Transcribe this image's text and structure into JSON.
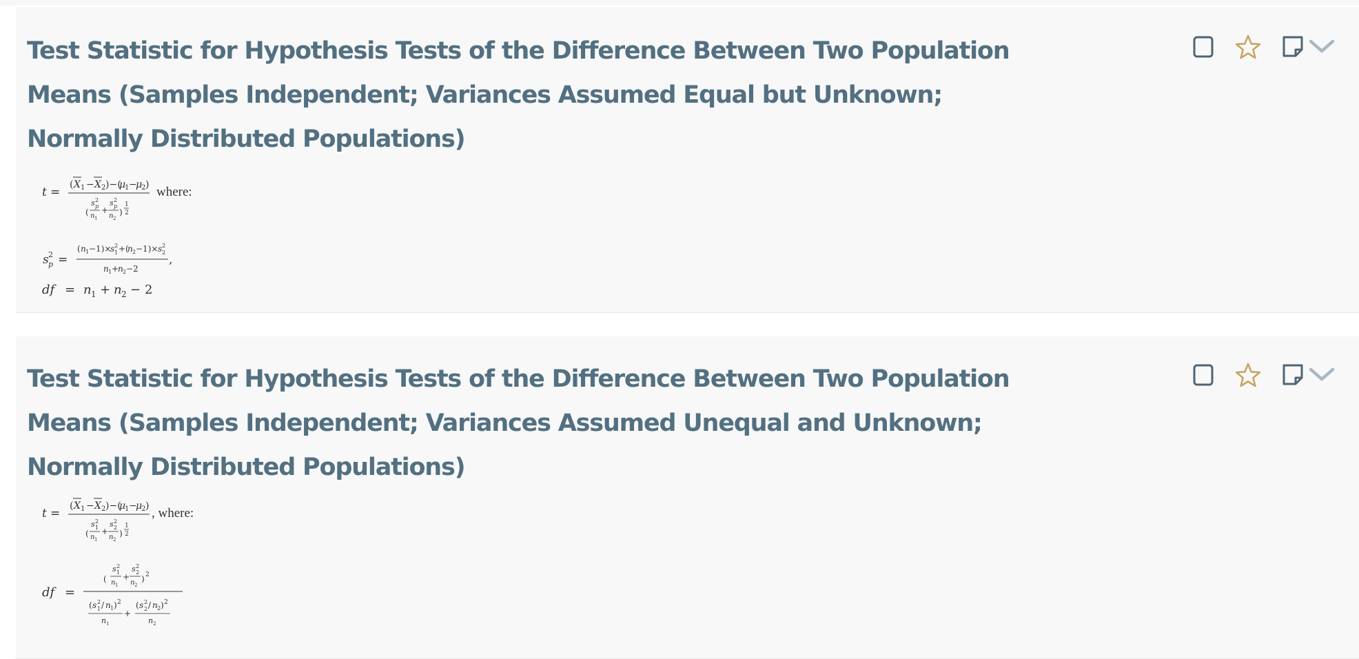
{
  "cards": [
    {
      "title": "Test Statistic for Hypothesis Tests of the Difference Between Two Population Means (Samples Independent; Variances Assumed Equal but Unknown; Normally Distributed Populations)",
      "where_text": "where:"
    },
    {
      "title": "Test Statistic for Hypothesis Tests of the Difference Between Two Population Means (Samples Independent; Variances Assumed Unequal and Unknown; Normally Distributed Populations)",
      "where_text": ", where:"
    }
  ],
  "icons": {
    "checkbox": "checkbox-icon",
    "star": "star-icon",
    "note": "note-icon",
    "expand": "chevron-down-icon"
  },
  "colors": {
    "title": "#527081",
    "icon": "#4d6575",
    "star": "#c6a662",
    "card_bg": "#f8f8f8"
  }
}
